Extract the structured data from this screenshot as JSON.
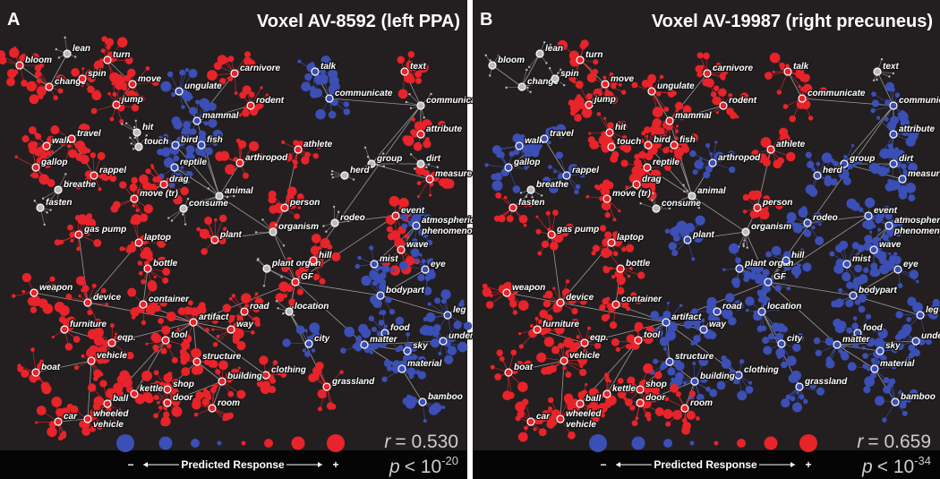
{
  "nodes": [
    "bloom",
    "lean",
    "change",
    "spin",
    "turn",
    "move",
    "jump",
    "ungulate",
    "carnivore",
    "talk",
    "communicate",
    "text",
    "rodent",
    "mammal",
    "communication",
    "walk",
    "travel",
    "hit",
    "touch",
    "bird",
    "fish",
    "attribute",
    "reptile",
    "arthropod",
    "athlete",
    "dirt",
    "gallop",
    "rappel",
    "group",
    "herd",
    "measure",
    "breathe",
    "drag",
    "move (tr)",
    "animal",
    "fasten",
    "consume",
    "person",
    "event",
    "rodeo",
    "atmospheric phenomenon",
    "gas pump",
    "plant",
    "organism",
    "wave",
    "laptop",
    "bottle",
    "plant organ",
    "hill",
    "mist",
    "eye",
    "weapon",
    "device",
    "container",
    "GF",
    "bodypart",
    "leg",
    "location",
    "furniture",
    "road",
    "eqp.",
    "tool",
    "artifact",
    "way",
    "food",
    "city",
    "matter",
    "sky",
    "underwater",
    "vehicle",
    "boat",
    "structure",
    "clothing",
    "material",
    "grassland",
    "kettle",
    "ball",
    "building",
    "shop",
    "bamboo",
    "door",
    "wheeled vehicle",
    "room",
    "car"
  ],
  "palette": {
    "r": "#e8232a",
    "b": "#3b4fb5",
    "w": "#bbbbbb"
  },
  "panels": [
    {
      "letter": "A",
      "title": "Voxel AV-8592 (left PPA)",
      "node_response": "rwrrrrrbrbbrrbwrrwwbbrbrrwrrwwrwrrwwwrrwbrrwrrrwrbbrrrrbbwrrrrrrbbbbbrrrrbrrrrrbrrrr",
      "r_symbol": "r",
      "r_text": "= 0.530",
      "p_symbol": "p",
      "p_text": "< 10",
      "p_exp": "-20"
    },
    {
      "letter": "B",
      "title": "Voxel AV-19987 (right precuneus)",
      "node_response": "wwwwrrrrrrrwrrbbbrrrrbrbrbbbbbbwrrwrwrbbbrbwbrrbbbbrrrbbbbrbrrbbbbbbbrrbbbbrrbrbrrrr",
      "r_symbol": "r",
      "r_text": "= 0.659",
      "p_symbol": "p",
      "p_text": "< 10",
      "p_exp": "-34"
    }
  ],
  "legend": {
    "minus": "−",
    "label": "Predicted Response",
    "plus": "+"
  }
}
